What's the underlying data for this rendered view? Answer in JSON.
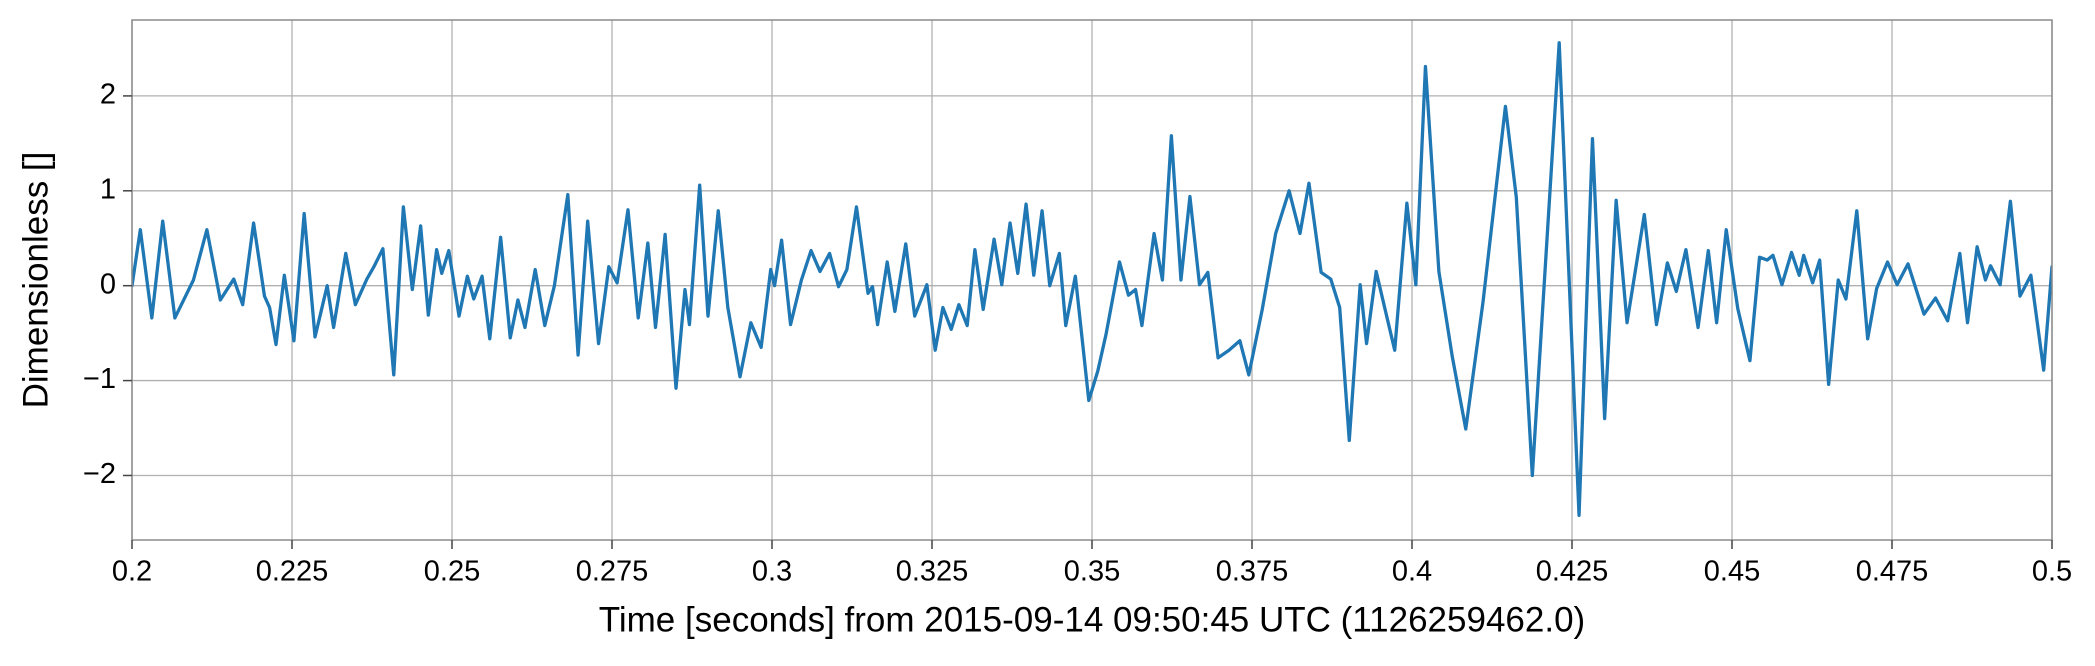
{
  "chart_data": {
    "type": "line",
    "xlabel": "Time [seconds] from 2015-09-14 09:50:45 UTC (1126259462.0)",
    "ylabel": "Dimensionless []",
    "color": "#1f77b4",
    "grid": true,
    "xlim": [
      0.2,
      0.5
    ],
    "ylim": [
      -2.68,
      2.8
    ],
    "xticks": [
      0.2,
      0.225,
      0.25,
      0.275,
      0.3,
      0.325,
      0.35,
      0.375,
      0.4,
      0.425,
      0.45,
      0.475,
      0.5
    ],
    "yticks": [
      {
        "value": -2,
        "label": "−2"
      },
      {
        "value": -1,
        "label": "−1"
      },
      0,
      1,
      2
    ],
    "x": [
      0.2,
      0.2013,
      0.2031,
      0.2048,
      0.2067,
      0.2096,
      0.2117,
      0.2138,
      0.2159,
      0.2173,
      0.219,
      0.2207,
      0.2215,
      0.2225,
      0.2238,
      0.2253,
      0.2269,
      0.2286,
      0.2305,
      0.2315,
      0.2334,
      0.2349,
      0.2367,
      0.2378,
      0.2392,
      0.2409,
      0.2424,
      0.2438,
      0.2451,
      0.2463,
      0.2476,
      0.2484,
      0.2495,
      0.2511,
      0.2524,
      0.2534,
      0.2547,
      0.2559,
      0.2576,
      0.2591,
      0.2603,
      0.2614,
      0.263,
      0.2645,
      0.266,
      0.2681,
      0.2697,
      0.2712,
      0.2729,
      0.2745,
      0.2758,
      0.2775,
      0.2791,
      0.2806,
      0.2818,
      0.2833,
      0.285,
      0.2864,
      0.2871,
      0.2887,
      0.29,
      0.2916,
      0.2931,
      0.295,
      0.2967,
      0.2983,
      0.2998,
      0.3004,
      0.3015,
      0.3029,
      0.3046,
      0.3061,
      0.3075,
      0.309,
      0.3104,
      0.3117,
      0.3132,
      0.315,
      0.3157,
      0.3165,
      0.318,
      0.3192,
      0.3209,
      0.3223,
      0.3242,
      0.3255,
      0.3267,
      0.328,
      0.3292,
      0.3305,
      0.3317,
      0.333,
      0.3347,
      0.3359,
      0.3372,
      0.3384,
      0.3397,
      0.3409,
      0.3422,
      0.3434,
      0.3449,
      0.3459,
      0.3474,
      0.3495,
      0.3509,
      0.3522,
      0.3543,
      0.3557,
      0.3568,
      0.3578,
      0.3597,
      0.361,
      0.3624,
      0.3639,
      0.3653,
      0.3668,
      0.3681,
      0.3697,
      0.3714,
      0.3731,
      0.3745,
      0.3766,
      0.3787,
      0.3808,
      0.3825,
      0.3839,
      0.3858,
      0.3873,
      0.3887,
      0.3902,
      0.3919,
      0.3929,
      0.3944,
      0.3973,
      0.3992,
      0.4006,
      0.4021,
      0.4042,
      0.4063,
      0.4084,
      0.4111,
      0.4146,
      0.4163,
      0.4188,
      0.423,
      0.4261,
      0.4282,
      0.4301,
      0.4319,
      0.4336,
      0.4363,
      0.4382,
      0.4399,
      0.4413,
      0.4428,
      0.4447,
      0.4463,
      0.4476,
      0.4491,
      0.4509,
      0.4528,
      0.4543,
      0.4555,
      0.4564,
      0.4578,
      0.4593,
      0.4605,
      0.4612,
      0.4626,
      0.4637,
      0.4651,
      0.4666,
      0.4678,
      0.4695,
      0.4712,
      0.4726,
      0.4743,
      0.4758,
      0.4775,
      0.48,
      0.4818,
      0.4837,
      0.4856,
      0.4868,
      0.4883,
      0.4896,
      0.4904,
      0.4919,
      0.4935,
      0.495,
      0.4967,
      0.4987,
      0.5
    ],
    "values": [
      0,
      0.59,
      -0.34,
      0.68,
      -0.34,
      0.06,
      0.59,
      -0.15,
      0.07,
      -0.2,
      0.66,
      -0.11,
      -0.23,
      -0.62,
      0.11,
      -0.58,
      0.76,
      -0.54,
      0,
      -0.44,
      0.34,
      -0.2,
      0.07,
      0.2,
      0.39,
      -0.94,
      0.83,
      -0.04,
      0.63,
      -0.31,
      0.38,
      0.13,
      0.37,
      -0.32,
      0.1,
      -0.14,
      0.1,
      -0.56,
      0.51,
      -0.55,
      -0.15,
      -0.44,
      0.17,
      -0.42,
      0,
      0.96,
      -0.73,
      0.68,
      -0.61,
      0.2,
      0.03,
      0.8,
      -0.34,
      0.45,
      -0.44,
      0.54,
      -1.08,
      -0.04,
      -0.41,
      1.06,
      -0.32,
      0.79,
      -0.23,
      -0.96,
      -0.39,
      -0.65,
      0.17,
      0,
      0.48,
      -0.41,
      0.06,
      0.37,
      0.15,
      0.34,
      -0.01,
      0.17,
      0.83,
      -0.08,
      -0.01,
      -0.41,
      0.25,
      -0.27,
      0.44,
      -0.32,
      0.01,
      -0.68,
      -0.23,
      -0.46,
      -0.2,
      -0.42,
      0.38,
      -0.25,
      0.49,
      0.01,
      0.66,
      0.13,
      0.86,
      0.11,
      0.79,
      0,
      0.34,
      -0.42,
      0.1,
      -1.21,
      -0.9,
      -0.51,
      0.25,
      -0.1,
      -0.04,
      -0.42,
      0.55,
      0.06,
      1.58,
      0.06,
      0.94,
      0.01,
      0.14,
      -0.76,
      -0.68,
      -0.58,
      -0.94,
      -0.25,
      0.55,
      1,
      0.55,
      1.08,
      0.14,
      0.07,
      -0.23,
      -1.63,
      0.01,
      -0.61,
      0.15,
      -0.68,
      0.87,
      0.01,
      2.31,
      0.15,
      -0.75,
      -1.51,
      -0.17,
      1.89,
      0.93,
      -2.0,
      2.56,
      -2.42,
      1.55,
      -1.4,
      0.9,
      -0.39,
      0.75,
      -0.41,
      0.24,
      -0.06,
      0.38,
      -0.44,
      0.37,
      -0.39,
      0.59,
      -0.24,
      -0.79,
      0.3,
      0.27,
      0.32,
      0.01,
      0.35,
      0.11,
      0.32,
      0.03,
      0.27,
      -1.04,
      0.06,
      -0.14,
      0.79,
      -0.56,
      -0.03,
      0.25,
      0.01,
      0.23,
      -0.3,
      -0.13,
      -0.37,
      0.34,
      -0.39,
      0.41,
      0.06,
      0.21,
      0.01,
      0.89,
      -0.11,
      0.11,
      -0.89,
      0.2
    ]
  }
}
